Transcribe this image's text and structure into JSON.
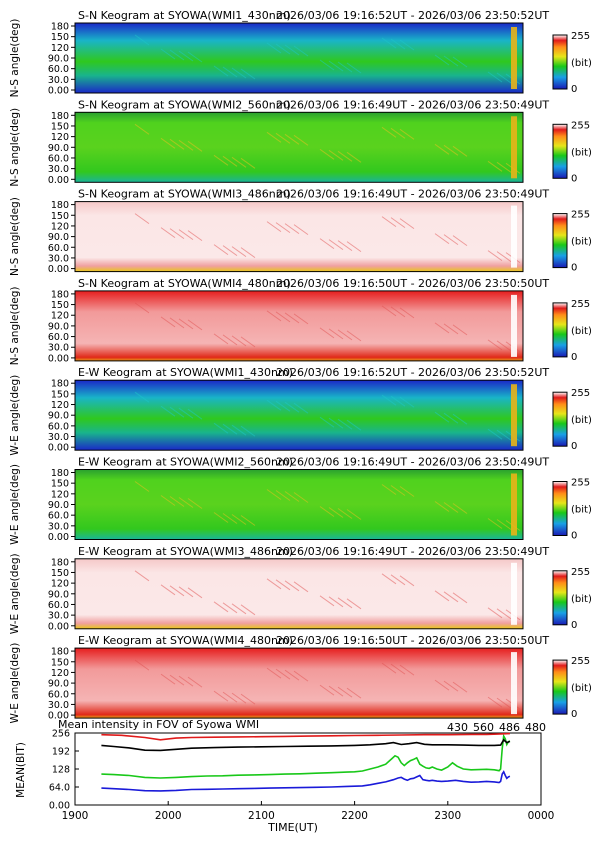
{
  "colors": {
    "wl430": "#1a1ad9",
    "wl560": "#19c819",
    "wl486": "#e01a1a",
    "wl480": "#000000"
  },
  "colorbar": {
    "max_label": "255",
    "unit_label": "(bit)",
    "min_label": "0"
  },
  "keogram_panels": [
    {
      "title": "S-N Keogram at SYOWA(WMI1_430nm)",
      "time_range": "2026/03/06 19:16:52UT - 2026/03/06 23:50:52UT",
      "ylabel": "N-S angle(deg)",
      "yticks": [
        "180",
        "150",
        "120",
        "90.0",
        "60.0",
        "30.0",
        "0.00"
      ],
      "style": "blue"
    },
    {
      "title": "S-N Keogram at SYOWA(WMI2_560nm)",
      "time_range": "2026/03/06 19:16:49UT - 2026/03/06 23:50:49UT",
      "ylabel": "N-S angle(deg)",
      "yticks": [
        "180",
        "150",
        "120",
        "90.0",
        "60.0",
        "30.0",
        "0.00"
      ],
      "style": "green"
    },
    {
      "title": "S-N Keogram at SYOWA(WMI3_486nm)",
      "time_range": "2026/03/06 19:16:49UT - 2026/03/06 23:50:49UT",
      "ylabel": "N-S angle(deg)",
      "yticks": [
        "180",
        "150",
        "120",
        "90.0",
        "60.0",
        "30.0",
        "0.00"
      ],
      "style": "white"
    },
    {
      "title": "S-N Keogram at SYOWA(WMI4_480nm)",
      "time_range": "2026/03/06 19:16:50UT - 2026/03/06 23:50:50UT",
      "ylabel": "N-S angle(deg)",
      "yticks": [
        "180",
        "150",
        "120",
        "90.0",
        "60.0",
        "30.0",
        "0.00"
      ],
      "style": "red"
    },
    {
      "title": "E-W Keogram at SYOWA(WMI1_430nm)",
      "time_range": "2026/03/06 19:16:52UT - 2026/03/06 23:50:52UT",
      "ylabel": "W-E angle(deg)",
      "yticks": [
        "180",
        "150",
        "120",
        "90.0",
        "60.0",
        "30.0",
        "0.00"
      ],
      "style": "blue"
    },
    {
      "title": "E-W Keogram at SYOWA(WMI2_560nm)",
      "time_range": "2026/03/06 19:16:49UT - 2026/03/06 23:50:49UT",
      "ylabel": "W-E angle(deg)",
      "yticks": [
        "180",
        "150",
        "120",
        "90.0",
        "60.0",
        "30.0",
        "0.00"
      ],
      "style": "green"
    },
    {
      "title": "E-W Keogram at SYOWA(WMI3_486nm)",
      "time_range": "2026/03/06 19:16:49UT - 2026/03/06 23:50:49UT",
      "ylabel": "W-E angle(deg)",
      "yticks": [
        "180",
        "150",
        "120",
        "90.0",
        "60.0",
        "30.0",
        "0.00"
      ],
      "style": "white"
    },
    {
      "title": "E-W Keogram at SYOWA(WMI4_480nm)",
      "time_range": "2026/03/06 19:16:50UT - 2026/03/06 23:50:50UT",
      "ylabel": "W-E angle(deg)",
      "yticks": [
        "180",
        "150",
        "120",
        "90.0",
        "60.0",
        "30.0",
        "0.00"
      ],
      "style": "red"
    }
  ],
  "chart_data": {
    "type": "line",
    "title": "Mean intensity in FOV of Syowa WMI",
    "xlabel": "TIME(UT)",
    "ylabel": "MEAN(BIT)",
    "x_unit": "minutes after 19:00 UT",
    "xlim": [
      0,
      300
    ],
    "ylim": [
      0,
      256
    ],
    "xticks": [
      {
        "value": 0,
        "label": "1900"
      },
      {
        "value": 60,
        "label": "2000"
      },
      {
        "value": 120,
        "label": "2100"
      },
      {
        "value": 180,
        "label": "2200"
      },
      {
        "value": 240,
        "label": "2300"
      },
      {
        "value": 300,
        "label": "0000"
      }
    ],
    "yticks": [
      {
        "value": 256,
        "label": "256"
      },
      {
        "value": 192,
        "label": "192"
      },
      {
        "value": 128,
        "label": "128"
      },
      {
        "value": 64,
        "label": "64.0"
      },
      {
        "value": 0,
        "label": "0.00"
      }
    ],
    "grid": false,
    "legend": "top-right",
    "series": [
      {
        "name": "430",
        "color": "#1a1ad9",
        "x": [
          17,
          25,
          35,
          45,
          55,
          65,
          75,
          85,
          95,
          105,
          115,
          125,
          135,
          145,
          155,
          165,
          175,
          180,
          185,
          190,
          195,
          200,
          205,
          208,
          210,
          212,
          214,
          216,
          218,
          220,
          222,
          224,
          226,
          228,
          230,
          233,
          236,
          240,
          245,
          250,
          255,
          260,
          265,
          270,
          273,
          274,
          275,
          276,
          277,
          278,
          279,
          280
        ],
        "y": [
          60,
          58,
          55,
          51,
          50,
          52,
          55,
          56,
          57,
          58,
          59,
          60,
          61,
          62,
          63,
          64,
          66,
          67,
          68,
          72,
          77,
          82,
          90,
          96,
          98,
          92,
          88,
          93,
          95,
          100,
          105,
          90,
          88,
          86,
          88,
          85,
          84,
          85,
          88,
          84,
          81,
          82,
          84,
          82,
          80,
          84,
          110,
          118,
          105,
          95,
          100,
          102
        ]
      },
      {
        "name": "560",
        "color": "#19c819",
        "x": [
          17,
          25,
          35,
          45,
          55,
          65,
          75,
          85,
          95,
          105,
          115,
          125,
          135,
          145,
          155,
          165,
          175,
          180,
          185,
          190,
          195,
          200,
          204,
          206,
          208,
          210,
          212,
          214,
          216,
          218,
          220,
          222,
          224,
          226,
          228,
          230,
          233,
          236,
          240,
          243,
          246,
          250,
          255,
          260,
          265,
          270,
          273,
          274,
          275,
          276,
          277,
          278,
          279,
          280
        ],
        "y": [
          110,
          108,
          105,
          98,
          96,
          98,
          101,
          103,
          104,
          106,
          107,
          108,
          110,
          111,
          113,
          115,
          117,
          118,
          121,
          128,
          135,
          145,
          165,
          175,
          170,
          150,
          140,
          150,
          158,
          162,
          168,
          145,
          138,
          132,
          130,
          135,
          128,
          124,
          135,
          150,
          138,
          128,
          125,
          126,
          127,
          125,
          122,
          128,
          200,
          245,
          235,
          215,
          225,
          228
        ]
      },
      {
        "name": "486",
        "color": "#e01a1a",
        "x": [
          17,
          30,
          45,
          55,
          65,
          75,
          90,
          105,
          120,
          135,
          150,
          165,
          180,
          195,
          210,
          225,
          240,
          255,
          265,
          272,
          276,
          280
        ],
        "y": [
          250,
          248,
          240,
          232,
          238,
          240,
          241,
          242,
          243,
          244,
          245,
          246,
          247,
          248,
          249,
          250,
          250,
          251,
          251,
          252,
          253,
          254
        ]
      },
      {
        "name": "480",
        "color": "#000000",
        "x": [
          17,
          25,
          35,
          45,
          55,
          65,
          75,
          90,
          105,
          120,
          135,
          150,
          165,
          180,
          190,
          200,
          205,
          210,
          215,
          220,
          225,
          230,
          240,
          250,
          260,
          270,
          274,
          276,
          278,
          280
        ],
        "y": [
          212,
          208,
          203,
          195,
          194,
          198,
          202,
          204,
          206,
          207,
          208,
          209,
          210,
          212,
          214,
          218,
          222,
          215,
          218,
          222,
          216,
          214,
          214,
          213,
          212,
          212,
          213,
          232,
          222,
          226
        ]
      }
    ]
  }
}
